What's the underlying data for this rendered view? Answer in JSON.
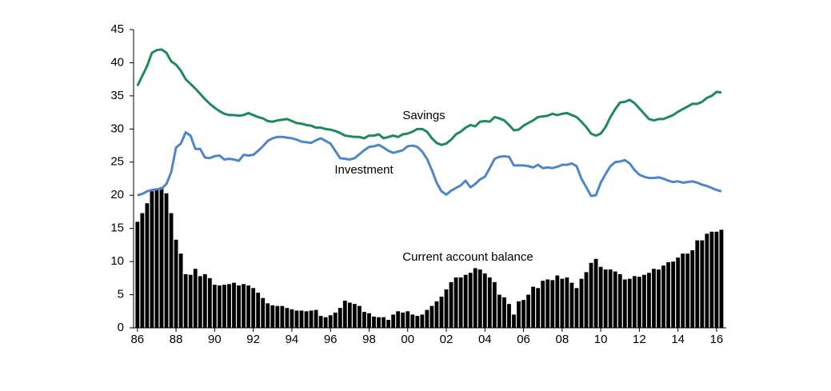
{
  "chart_data": {
    "type": "combo",
    "x": [
      1986,
      1986.25,
      1986.5,
      1986.75,
      1987,
      1987.25,
      1987.5,
      1987.75,
      1988,
      1988.25,
      1988.5,
      1988.75,
      1989,
      1989.25,
      1989.5,
      1989.75,
      1990,
      1990.25,
      1990.5,
      1990.75,
      1991,
      1991.25,
      1991.5,
      1991.75,
      1992,
      1992.25,
      1992.5,
      1992.75,
      1993,
      1993.25,
      1993.5,
      1993.75,
      1994,
      1994.25,
      1994.5,
      1994.75,
      1995,
      1995.25,
      1995.5,
      1995.75,
      1996,
      1996.25,
      1996.5,
      1996.75,
      1997,
      1997.25,
      1997.5,
      1997.75,
      1998,
      1998.25,
      1998.5,
      1998.75,
      1999,
      1999.25,
      1999.5,
      1999.75,
      2000,
      2000.25,
      2000.5,
      2000.75,
      2001,
      2001.25,
      2001.5,
      2001.75,
      2002,
      2002.25,
      2002.5,
      2002.75,
      2003,
      2003.25,
      2003.5,
      2003.75,
      2004,
      2004.25,
      2004.5,
      2004.75,
      2005,
      2005.25,
      2005.5,
      2005.75,
      2006,
      2006.25,
      2006.5,
      2006.75,
      2007,
      2007.25,
      2007.5,
      2007.75,
      2008,
      2008.25,
      2008.5,
      2008.75,
      2009,
      2009.25,
      2009.5,
      2009.75,
      2010,
      2010.25,
      2010.5,
      2010.75,
      2011,
      2011.25,
      2011.5,
      2011.75,
      2012,
      2012.25,
      2012.5,
      2012.75,
      2013,
      2013.25,
      2013.5,
      2013.75,
      2014,
      2014.25,
      2014.5,
      2014.75,
      2015,
      2015.25,
      2015.5,
      2015.75,
      2016,
      2016.25
    ],
    "series": [
      {
        "name": "Current account balance",
        "type": "bar",
        "color": "#000000",
        "values": [
          16,
          17.3,
          18.8,
          20.6,
          21,
          21.2,
          20.3,
          17.3,
          13.3,
          11.2,
          8.1,
          8.0,
          8.9,
          7.8,
          8.1,
          7.5,
          6.5,
          6.4,
          6.5,
          6.6,
          6.8,
          6.4,
          6.6,
          6.4,
          6.0,
          5.3,
          4.5,
          3.7,
          3.4,
          3.3,
          3.3,
          3.0,
          2.8,
          2.6,
          2.6,
          2.5,
          2.6,
          2.7,
          1.8,
          1.6,
          1.9,
          2.3,
          3.0,
          4.1,
          3.8,
          3.6,
          3.3,
          2.4,
          2.2,
          1.7,
          1.6,
          1.6,
          1.2,
          2.0,
          2.5,
          2.3,
          2.5,
          2.0,
          1.8,
          2.0,
          2.7,
          3.3,
          4.0,
          4.7,
          5.8,
          6.9,
          7.6,
          7.6,
          8.0,
          8.3,
          9.0,
          8.8,
          8.2,
          7.6,
          6.9,
          5.0,
          4.6,
          3.6,
          2.0,
          4.0,
          4.2,
          5.0,
          6.2,
          6.0,
          7.1,
          7.3,
          7.2,
          7.9,
          7.4,
          7.6,
          6.8,
          6.0,
          7.4,
          8.4,
          9.8,
          10.4,
          9.2,
          8.8,
          8.8,
          8.5,
          8.1,
          7.3,
          7.4,
          7.8,
          7.7,
          8.0,
          8.3,
          8.9,
          8.8,
          9.4,
          9.9,
          10.0,
          10.6,
          11.2,
          11.2,
          11.7,
          13.2,
          13.2,
          14.2,
          14.5,
          14.5,
          14.8
        ]
      },
      {
        "name": "Savings",
        "type": "line",
        "color": "#1e8a5c",
        "values": [
          36.5,
          38,
          39.5,
          41.5,
          41.9,
          42,
          41.5,
          40.2,
          39.7,
          38.8,
          37.5,
          36.8,
          36.1,
          35.3,
          34.5,
          33.8,
          33.2,
          32.7,
          32.3,
          32.1,
          32.1,
          32.0,
          32.1,
          32.4,
          32.1,
          31.8,
          31.6,
          31.2,
          31.1,
          31.3,
          31.4,
          31.5,
          31.2,
          30.9,
          30.8,
          30.6,
          30.5,
          30.2,
          30.2,
          30.0,
          29.9,
          29.7,
          29.4,
          29.0,
          28.9,
          28.8,
          28.8,
          28.6,
          29.0,
          29.0,
          29.2,
          28.6,
          28.8,
          29.0,
          28.8,
          29.2,
          29.3,
          29.6,
          30.0,
          30.0,
          29.6,
          28.6,
          27.9,
          27.6,
          27.8,
          28.4,
          29.2,
          29.6,
          30.2,
          30.6,
          30.4,
          31.1,
          31.2,
          31.1,
          31.8,
          31.6,
          31.3,
          30.6,
          29.8,
          29.9,
          30.5,
          30.9,
          31.3,
          31.8,
          31.9,
          32.0,
          32.3,
          32.1,
          32.3,
          32.4,
          32.1,
          31.8,
          31.1,
          30.3,
          29.3,
          29.0,
          29.3,
          30.3,
          31.8,
          33.0,
          34.0,
          34.1,
          34.4,
          33.9,
          33.1,
          32.3,
          31.5,
          31.3,
          31.5,
          31.5,
          31.8,
          32.1,
          32.6,
          33.0,
          33.4,
          33.8,
          33.8,
          34.1,
          34.7,
          35.0,
          35.6,
          35.5
        ]
      },
      {
        "name": "Investment",
        "type": "line",
        "color": "#4f86c6",
        "values": [
          20.0,
          20.2,
          20.6,
          20.8,
          20.9,
          21.0,
          21.7,
          23.5,
          27.2,
          27.8,
          29.5,
          29.0,
          27.0,
          27.0,
          25.7,
          25.6,
          25.9,
          26.0,
          25.4,
          25.5,
          25.4,
          25.2,
          26.1,
          26.0,
          26.1,
          26.7,
          27.4,
          28.2,
          28.6,
          28.8,
          28.8,
          28.7,
          28.6,
          28.4,
          28.1,
          28.0,
          27.9,
          28.3,
          28.6,
          28.2,
          27.8,
          26.7,
          25.6,
          25.5,
          25.4,
          25.6,
          26.2,
          26.8,
          27.3,
          27.4,
          27.6,
          27.2,
          26.7,
          26.4,
          26.6,
          26.8,
          27.4,
          27.5,
          27.3,
          26.6,
          25.5,
          23.8,
          21.9,
          20.6,
          20.1,
          20.7,
          21.1,
          21.5,
          22.2,
          21.2,
          21.7,
          22.4,
          22.8,
          24.1,
          25.5,
          25.8,
          25.9,
          25.8,
          24.5,
          24.5,
          24.5,
          24.4,
          24.2,
          24.6,
          24.1,
          24.2,
          24.1,
          24.3,
          24.6,
          24.6,
          24.8,
          24.4,
          22.5,
          21.2,
          19.9,
          20.0,
          21.9,
          23.2,
          24.4,
          25.0,
          25.1,
          25.3,
          24.8,
          23.8,
          23.1,
          22.8,
          22.6,
          22.6,
          22.7,
          22.5,
          22.2,
          22.0,
          22.1,
          21.9,
          22.0,
          22.1,
          21.9,
          21.6,
          21.4,
          21.1,
          20.8,
          20.6
        ]
      }
    ],
    "xlim": [
      1985.8,
      2016.5
    ],
    "xticks": [
      {
        "value": 1986,
        "label": "86"
      },
      {
        "value": 1988,
        "label": "88"
      },
      {
        "value": 1990,
        "label": "90"
      },
      {
        "value": 1992,
        "label": "92"
      },
      {
        "value": 1994,
        "label": "94"
      },
      {
        "value": 1996,
        "label": "96"
      },
      {
        "value": 1998,
        "label": "98"
      },
      {
        "value": 2000,
        "label": "00"
      },
      {
        "value": 2002,
        "label": "02"
      },
      {
        "value": 2004,
        "label": "04"
      },
      {
        "value": 2006,
        "label": "06"
      },
      {
        "value": 2008,
        "label": "08"
      },
      {
        "value": 2010,
        "label": "10"
      },
      {
        "value": 2012,
        "label": "12"
      },
      {
        "value": 2014,
        "label": "14"
      },
      {
        "value": 2016,
        "label": "16"
      }
    ],
    "ylim": [
      0,
      45
    ],
    "yticks": [
      0,
      5,
      10,
      15,
      20,
      25,
      30,
      35,
      40,
      45
    ],
    "grid": false
  }
}
